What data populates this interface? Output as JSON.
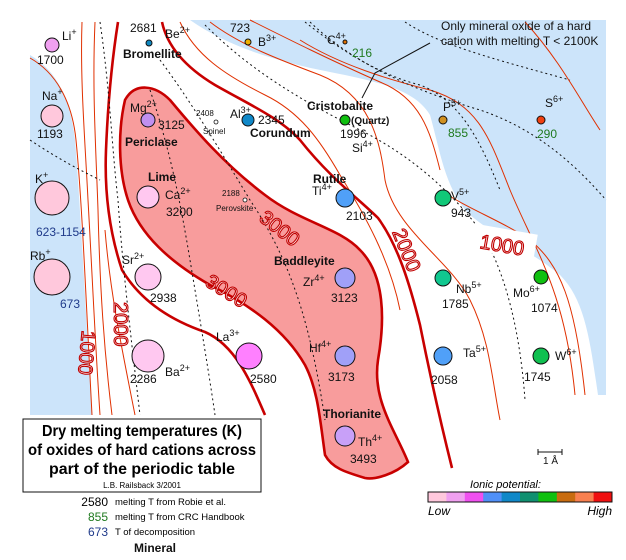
{
  "title": {
    "lines": [
      "Dry melting temperatures (K)",
      "of oxides of hard cations across",
      "part of the periodic table"
    ],
    "author": "L.B. Railsback  3/2001"
  },
  "callout": [
    "Only mineral oxide of a hard",
    "cation with melting T < 2100K"
  ],
  "temp_legend": [
    {
      "value": "2580",
      "text": "melting T from Robie et al.",
      "color": "#111111"
    },
    {
      "value": "855",
      "text": "melting T from CRC Handbook",
      "color": "#1f7a1f"
    },
    {
      "value": "673",
      "text": "T of decomposition",
      "color": "#1f3a8a"
    }
  ],
  "mineral_legend": "Mineral",
  "ionic_scale": {
    "title": "Ionic potential:",
    "low": "Low",
    "high": "High",
    "colors": [
      "#ffc8dc",
      "#f0a0f0",
      "#f050f0",
      "#5090f8",
      "#1088c8",
      "#109070",
      "#10c010",
      "#c86c10",
      "#f88050",
      "#f01010"
    ]
  },
  "scale_bar": "1 Å",
  "contour_labels": [
    "3000",
    "3000",
    "2000",
    "2000",
    "1000",
    "1000"
  ],
  "minor_phases": [
    {
      "name": "Spinel",
      "temp": "2408"
    },
    {
      "name": "Perovskite",
      "temp": "2188"
    }
  ],
  "ions": [
    {
      "symbol": "Li",
      "charge": "+",
      "temp": "1700",
      "source": "robie",
      "color": "#f0a0f0"
    },
    {
      "symbol": "Be",
      "charge": "2+",
      "temp": "2681",
      "source": "robie",
      "color": "#1088c0",
      "mineral": "Bromellite"
    },
    {
      "symbol": "B",
      "charge": "3+",
      "temp": "723",
      "source": "robie",
      "color": "#f0b000"
    },
    {
      "symbol": "C",
      "charge": "4+",
      "temp": "216",
      "source": "crc",
      "color": "#e07000"
    },
    {
      "symbol": "Na",
      "charge": "+",
      "temp": "1193",
      "source": "robie",
      "color": "#ffc8dc"
    },
    {
      "symbol": "Mg",
      "charge": "2+",
      "temp": "3125",
      "source": "robie",
      "color": "#c090f0",
      "mineral": "Periclase"
    },
    {
      "symbol": "Al",
      "charge": "3+",
      "temp": "2345",
      "source": "robie",
      "color": "#1088c8",
      "mineral": "Corundum"
    },
    {
      "symbol": "Si",
      "charge": "4+",
      "temp": "1996",
      "source": "robie",
      "color": "#10c010",
      "mineral": "Cristobalite",
      "mineral_note": "(Quartz)"
    },
    {
      "symbol": "P",
      "charge": "5+",
      "temp": "855",
      "source": "crc",
      "color": "#d09020"
    },
    {
      "symbol": "S",
      "charge": "6+",
      "temp": "290",
      "source": "crc",
      "color": "#f04010"
    },
    {
      "symbol": "K",
      "charge": "+",
      "temp": "623-1154",
      "source": "decomp",
      "color": "#ffc8dc"
    },
    {
      "symbol": "Ca",
      "charge": "2+",
      "temp": "3200",
      "source": "robie",
      "color": "#ffc8f0",
      "mineral": "Lime"
    },
    {
      "symbol": "Ti",
      "charge": "4+",
      "temp": "2103",
      "source": "robie",
      "color": "#50a0f8",
      "mineral": "Rutile"
    },
    {
      "symbol": "V",
      "charge": "5+",
      "temp": "943",
      "source": "robie",
      "color": "#10c878"
    },
    {
      "symbol": "Rb",
      "charge": "+",
      "temp": "673",
      "source": "decomp",
      "color": "#ffc8dc"
    },
    {
      "symbol": "Sr",
      "charge": "2+",
      "temp": "2938",
      "source": "robie",
      "color": "#ffc8f0"
    },
    {
      "symbol": "Zr",
      "charge": "4+",
      "temp": "3123",
      "source": "robie",
      "color": "#a0a0f8",
      "mineral": "Baddleyite"
    },
    {
      "symbol": "Nb",
      "charge": "5+",
      "temp": "1785",
      "source": "robie",
      "color": "#10c890"
    },
    {
      "symbol": "Mo",
      "charge": "6+",
      "temp": "1074",
      "source": "robie",
      "color": "#10c010"
    },
    {
      "symbol": "Ba",
      "charge": "2+",
      "temp": "2286",
      "source": "robie",
      "color": "#ffc8f0"
    },
    {
      "symbol": "La",
      "charge": "3+",
      "temp": "2580",
      "source": "robie",
      "color": "#ff80ff"
    },
    {
      "symbol": "Hf",
      "charge": "4+",
      "temp": "3173",
      "source": "robie",
      "color": "#a0a0f8"
    },
    {
      "symbol": "Ta",
      "charge": "5+",
      "temp": "2058",
      "source": "robie",
      "color": "#50a0f8"
    },
    {
      "symbol": "W",
      "charge": "6+",
      "temp": "1745",
      "source": "robie",
      "color": "#10c050"
    },
    {
      "symbol": "Th",
      "charge": "4+",
      "temp": "3493",
      "source": "robie",
      "color": "#c8a0f8",
      "mineral": "Thorianite"
    }
  ]
}
